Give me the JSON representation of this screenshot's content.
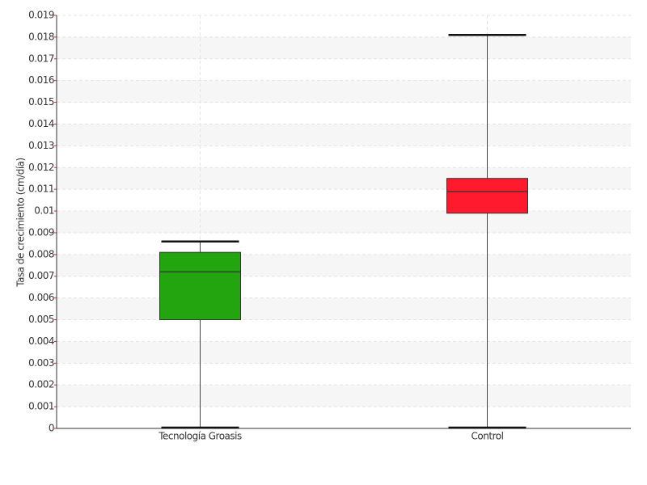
{
  "chart_data": {
    "type": "box",
    "y_label": "Tasa de crecimiento (cm/día)",
    "categories": [
      "Tecnología Groasis",
      "Control"
    ],
    "values": [
      {
        "min": 0,
        "q1": 0.005,
        "median": 0.0072,
        "q3": 0.0081,
        "max": 0.0086
      },
      {
        "min": 0,
        "q1": 0.0099,
        "median": 0.0109,
        "q3": 0.0115,
        "max": 0.0181
      }
    ],
    "colors": [
      "#22a50f",
      "#ff1a2e"
    ],
    "ylim": [
      0,
      0.019
    ],
    "yticks": [
      0,
      0.001,
      0.002,
      0.003,
      0.004,
      0.005,
      0.006,
      0.007,
      0.008,
      0.009,
      0.01,
      0.011,
      0.012,
      0.013,
      0.014,
      0.015,
      0.016,
      0.017,
      0.018,
      0.019
    ],
    "grid": true
  }
}
